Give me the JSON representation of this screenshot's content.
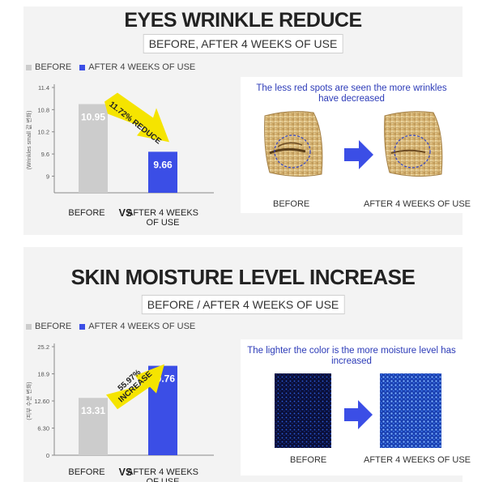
{
  "sections": [
    {
      "title": "EYES WRINKLE REDUCE",
      "subtitle": "BEFORE, AFTER 4 WEEKS OF USE",
      "legend": [
        {
          "label": "BEFORE",
          "color": "#cccccc"
        },
        {
          "label": "AFTER 4 WEEKS OF USE",
          "color": "#3b4ee6"
        }
      ],
      "figure": {
        "caption": "The less red spots are seen the more wrinkles have decreased",
        "before_label": "BEFORE",
        "after_label": "AFTER 4 WEEKS OF USE"
      }
    },
    {
      "title": "SKIN MOISTURE LEVEL INCREASE",
      "subtitle": "BEFORE / AFTER 4 WEEKS OF USE",
      "legend": [
        {
          "label": "BEFORE",
          "color": "#cccccc"
        },
        {
          "label": "AFTER 4 WEEKS OF USE",
          "color": "#3b4ee6"
        }
      ],
      "figure": {
        "caption": "The lighter the color is the more moisture level has increased",
        "before_label": "BEFORE",
        "after_label": "AFTER 4 WEEKS OF USE"
      }
    }
  ],
  "chart_data": [
    {
      "type": "bar",
      "categories": [
        "BEFORE",
        "AFTER 4 WEEKS OF USE"
      ],
      "category_labels": [
        [
          "BEFORE"
        ],
        [
          "AFTER 4 WEEKS",
          "OF USE"
        ]
      ],
      "separator": "VS",
      "values": [
        10.95,
        9.66
      ],
      "value_labels": [
        "10.95",
        "9.66"
      ],
      "colors": [
        "#cccccc",
        "#3b4ee6"
      ],
      "ylabel": "(Wrinkles small 값 변화)",
      "yticks": [
        9,
        9.6,
        10.2,
        10.8,
        11.4
      ],
      "ytick_labels": [
        "9",
        "9.6",
        "10.2",
        "10.8",
        "11.4"
      ],
      "ylim": [
        8.55,
        11.4
      ],
      "annotation": [
        "11.72% REDUCE"
      ],
      "annotation_color": "#f5e400"
    },
    {
      "type": "bar",
      "categories": [
        "BEFORE",
        "AFTER 4 WEEKS OF USE"
      ],
      "category_labels": [
        [
          "BEFORE"
        ],
        [
          "AFTER 4 WEEKS",
          "OF USE"
        ]
      ],
      "separator": "VS",
      "values": [
        13.31,
        20.76
      ],
      "value_labels": [
        "13.31",
        "20.76"
      ],
      "colors": [
        "#cccccc",
        "#3b4ee6"
      ],
      "ylabel": "(피부 수분 변화)",
      "yticks": [
        0,
        6.3,
        12.6,
        18.9,
        25.2
      ],
      "ytick_labels": [
        "0",
        "6.30",
        "12.60",
        "18.9",
        "25.2"
      ],
      "ylim": [
        0,
        25.2
      ],
      "annotation": [
        "55.97%",
        "INCREASE"
      ],
      "annotation_color": "#f5e400"
    }
  ]
}
